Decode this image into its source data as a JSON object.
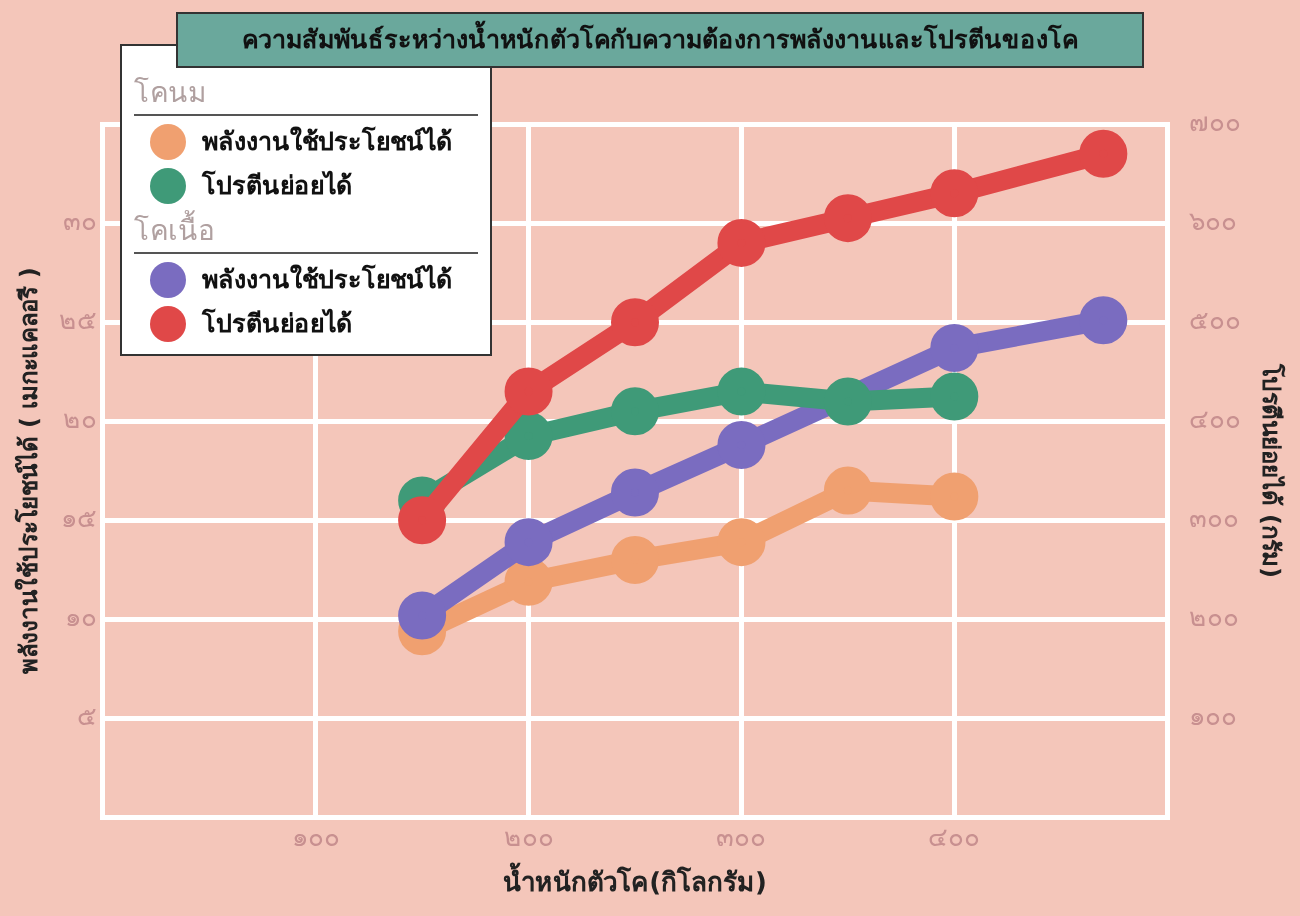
{
  "chart_data": {
    "type": "line",
    "title": "ความสัมพันธ์ระหว่างน้ำหนักตัวโคกับความต้องการพลังงานและโปรตีนของโค",
    "xlabel": "น้ำหนักตัวโค(กิโลกรัม)",
    "ylabel": "พลังงานใช้ประโยชน์ได้ ( เมกะแคลอรี )",
    "y2label": "โปรตีนย่อยได้ (กรัม)",
    "annotations": [
      "โคนม",
      "โคเนื้อ"
    ],
    "x": [
      150,
      200,
      250,
      300,
      350,
      400,
      470
    ],
    "series": [
      {
        "name": "พลังงานใช้ประโยชน์ได้",
        "color": "#f0a070",
        "values": [
          9.4,
          11.9,
          13.0,
          13.9,
          16.5,
          16.2,
          null
        ]
      },
      {
        "name": "โปรตีนย่อยได้",
        "color": "#3f9a78",
        "axis": "y2",
        "values": [
          320,
          385,
          410,
          430,
          420,
          425,
          null
        ]
      },
      {
        "name": "พลังงานใช้ประโยชน์ได้",
        "color": "#7a6cc0",
        "x": [
          150,
          200,
          250,
          300,
          400,
          470
        ],
        "values": [
          10.2,
          13.9,
          16.4,
          18.8,
          23.7,
          25.1
        ]
      },
      {
        "name": "โปรตีนย่อยได้",
        "color": "#e04848",
        "axis": "y2",
        "values": [
          300,
          430,
          500,
          580,
          605,
          630,
          670
        ]
      }
    ],
    "xlim": [
      0,
      500
    ],
    "xticks": [
      {
        "value": 100,
        "label": "๑๐๐"
      },
      {
        "value": 200,
        "label": "๒๐๐"
      },
      {
        "value": 300,
        "label": "๓๐๐"
      },
      {
        "value": 400,
        "label": "๔๐๐"
      }
    ],
    "ylim": [
      0,
      35
    ],
    "yticks": [
      {
        "value": 5,
        "label": "๕"
      },
      {
        "value": 10,
        "label": "๑๐"
      },
      {
        "value": 15,
        "label": "๑๕"
      },
      {
        "value": 20,
        "label": "๒๐"
      },
      {
        "value": 25,
        "label": "๒๕"
      },
      {
        "value": 30,
        "label": "๓๐"
      },
      {
        "value": 35,
        "label": null
      }
    ],
    "y2lim": [
      0,
      700
    ],
    "y2ticks": [
      {
        "value": 100,
        "label": "๑๐๐"
      },
      {
        "value": 200,
        "label": "๒๐๐"
      },
      {
        "value": 300,
        "label": "๓๐๐"
      },
      {
        "value": 400,
        "label": "๔๐๐"
      },
      {
        "value": 500,
        "label": "๕๐๐"
      },
      {
        "value": 600,
        "label": "๖๐๐"
      },
      {
        "value": 700,
        "label": "๗๐๐"
      }
    ],
    "grid": true,
    "legend": "top left",
    "marker": "circle",
    "line_style": "solid"
  }
}
